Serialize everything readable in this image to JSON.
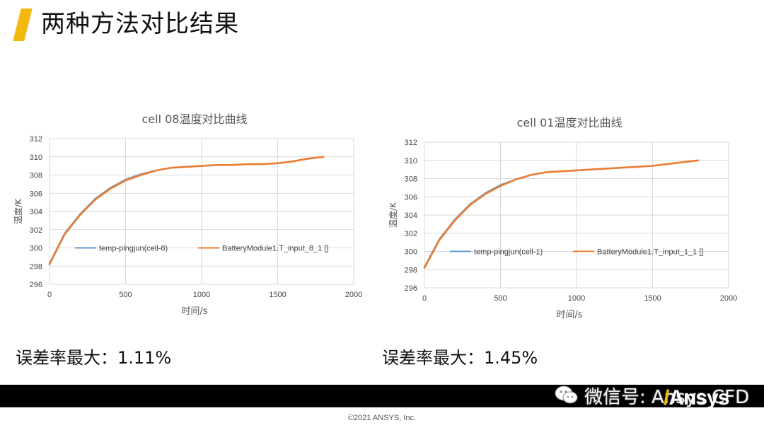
{
  "page": {
    "title": "两种方法对比结果",
    "copyright": "©2021 ANSYS, Inc.",
    "watermark": "微信号: Ansys CFD",
    "logo": "Ansys",
    "accent_color": "#f2b90f"
  },
  "summaries": {
    "left": "误差率最大：1.11%",
    "right": "误差率最大：1.45%"
  },
  "chart_data": [
    {
      "type": "line",
      "title": "cell 08温度对比曲线",
      "xlabel": "时间/s",
      "ylabel": "温度/K",
      "xlim": [
        0,
        2000
      ],
      "ylim": [
        296,
        312
      ],
      "xticks": [
        0,
        500,
        1000,
        1500,
        2000
      ],
      "yticks": [
        296,
        298,
        300,
        302,
        304,
        306,
        308,
        310,
        312
      ],
      "grid": true,
      "legend": "inside-lower-left",
      "x": [
        0,
        100,
        200,
        300,
        400,
        500,
        600,
        700,
        800,
        900,
        1000,
        1100,
        1200,
        1300,
        1400,
        1500,
        1600,
        1700,
        1800
      ],
      "series": [
        {
          "name": "temp-pingjun(cell-8)",
          "color": "#5b9bd5",
          "values": [
            298.3,
            301.6,
            303.7,
            305.4,
            306.6,
            307.5,
            308.1,
            308.5,
            308.8,
            308.9,
            309.0,
            309.1,
            309.1,
            309.2,
            309.2,
            309.3,
            309.5,
            309.8,
            310.0
          ]
        },
        {
          "name": "BatteryModule1.T_input_8_1 []",
          "color": "#ed7d31",
          "values": [
            298.2,
            301.5,
            303.6,
            305.3,
            306.5,
            307.4,
            308.0,
            308.5,
            308.8,
            308.9,
            309.0,
            309.1,
            309.1,
            309.2,
            309.2,
            309.3,
            309.5,
            309.8,
            310.0
          ]
        }
      ]
    },
    {
      "type": "line",
      "title": "cell 01温度对比曲线",
      "xlabel": "时间/s",
      "ylabel": "温度/K",
      "xlim": [
        0,
        2000
      ],
      "ylim": [
        296,
        312
      ],
      "xticks": [
        0,
        500,
        1000,
        1500,
        2000
      ],
      "yticks": [
        296,
        298,
        300,
        302,
        304,
        306,
        308,
        310,
        312
      ],
      "grid": true,
      "legend": "inside-lower-left",
      "x": [
        0,
        100,
        200,
        300,
        400,
        500,
        600,
        700,
        800,
        900,
        1000,
        1100,
        1200,
        1300,
        1400,
        1500,
        1600,
        1700,
        1800
      ],
      "series": [
        {
          "name": "temp-pingjun(cell-1)",
          "color": "#5b9bd5",
          "values": [
            298.3,
            301.4,
            303.5,
            305.2,
            306.4,
            307.3,
            307.9,
            308.4,
            308.7,
            308.8,
            308.9,
            309.0,
            309.1,
            309.2,
            309.3,
            309.4,
            309.6,
            309.8,
            310.0
          ]
        },
        {
          "name": "BatteryModule1.T_input_1_1 []",
          "color": "#ed7d31",
          "values": [
            298.2,
            301.3,
            303.4,
            305.1,
            306.3,
            307.2,
            307.9,
            308.4,
            308.7,
            308.8,
            308.9,
            309.0,
            309.1,
            309.2,
            309.3,
            309.4,
            309.6,
            309.8,
            310.0
          ]
        }
      ]
    }
  ]
}
